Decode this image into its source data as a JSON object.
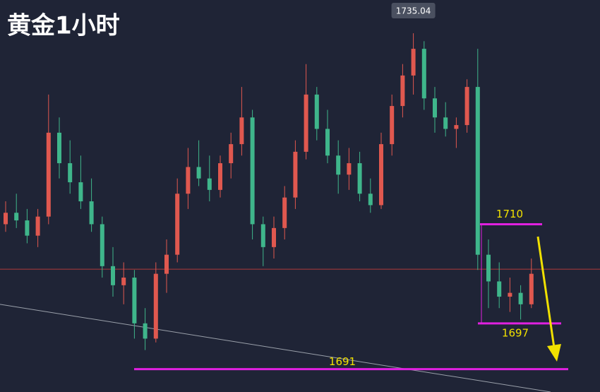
{
  "chart_data": {
    "type": "candlestick",
    "title": "黄金1小时",
    "ylim": [
      1688,
      1739.4
    ],
    "up_color": "#e0584f",
    "down_color": "#3fb68b",
    "open": [
      1710,
      1711.5,
      1710.5,
      1708.5,
      1711,
      1722,
      1718,
      1715.5,
      1713,
      1710,
      1704.5,
      1702,
      1703,
      1697,
      1695,
      1703.5,
      1706,
      1714,
      1717.5,
      1716,
      1714.5,
      1718,
      1720.5,
      1724,
      1710,
      1707,
      1709.5,
      1713.5,
      1719.5,
      1727,
      1722.5,
      1719,
      1716.5,
      1718,
      1714,
      1712.5,
      1720.5,
      1725.5,
      1729.5,
      1733,
      1726.5,
      1724,
      1722.5,
      1723,
      1728,
      1706,
      1702.5,
      1700.5,
      1701,
      1699.5
    ],
    "high": [
      1713,
      1714,
      1712,
      1712,
      1727,
      1724,
      1721,
      1719,
      1716,
      1711,
      1707,
      1705,
      1704,
      1699,
      1705,
      1708,
      1716,
      1720,
      1721,
      1719,
      1719,
      1722,
      1728,
      1725,
      1711,
      1711,
      1715,
      1721,
      1731,
      1728,
      1725,
      1721,
      1720,
      1719.5,
      1716,
      1722,
      1727,
      1731,
      1735.04,
      1734,
      1728,
      1726,
      1724,
      1729,
      1733,
      1708,
      1705,
      1703,
      1702,
      1705.5
    ],
    "low": [
      1709,
      1709.5,
      1707.5,
      1707,
      1710,
      1716,
      1714,
      1712,
      1709,
      1703,
      1700.5,
      1699.5,
      1695,
      1693.5,
      1694.5,
      1701,
      1705,
      1712,
      1715,
      1713,
      1713.5,
      1716,
      1719,
      1708,
      1704.5,
      1705.5,
      1708,
      1712,
      1718.5,
      1721,
      1718,
      1714,
      1714.5,
      1713,
      1711.5,
      1712,
      1719,
      1724,
      1727,
      1725,
      1722,
      1721.5,
      1720,
      1722,
      1704,
      1699,
      1699,
      1698.5,
      1697.5,
      1699
    ],
    "close": [
      1711.5,
      1710.5,
      1708.5,
      1711,
      1722,
      1718,
      1715.5,
      1713,
      1710,
      1704.5,
      1702,
      1703,
      1697,
      1695,
      1703.5,
      1706,
      1714,
      1717.5,
      1716,
      1714.5,
      1718,
      1720.5,
      1724,
      1710,
      1707,
      1709.5,
      1713.5,
      1719.5,
      1727,
      1722.5,
      1719,
      1716.5,
      1718,
      1714,
      1712.5,
      1720.5,
      1725.5,
      1729.5,
      1733,
      1726.5,
      1724,
      1722.5,
      1723,
      1728,
      1706,
      1702.5,
      1700.5,
      1701,
      1699.5,
      1703.5
    ],
    "levels": [
      1710,
      1697,
      1691
    ],
    "level_color": "#e020e0",
    "level_label_color": "#f0e000",
    "price_line": 1704.1,
    "price_line_color": "#b03a3a",
    "trendline": [
      1699.5,
      1688
    ],
    "trendline_color": "#9aa0aa"
  }
}
